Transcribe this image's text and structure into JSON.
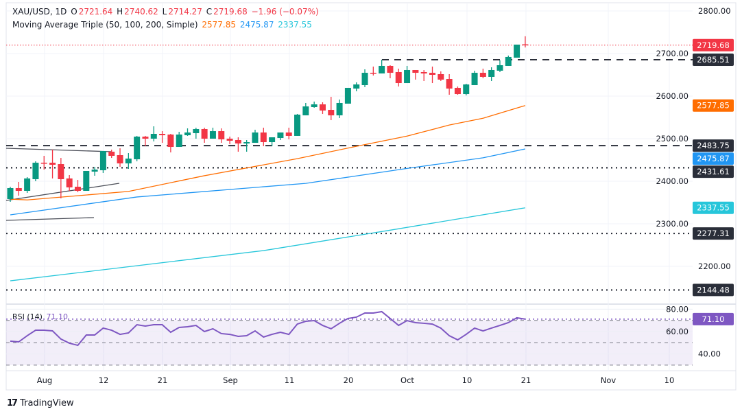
{
  "header": {
    "symbol": "XAU/USD, 1D",
    "open_label": "O",
    "open": "2721.64",
    "high_label": "H",
    "high": "2740.62",
    "low_label": "L",
    "low": "2714.27",
    "close_label": "C",
    "close": "2719.68",
    "change": "−1.96 (−0.07%)"
  },
  "indicator": {
    "name": "Moving Average Triple (50, 100, 200, Simple)",
    "ma50": "2577.85",
    "ma100": "2475.87",
    "ma200": "2337.55"
  },
  "rsi": {
    "label": "RSI (14)",
    "value": "71.10"
  },
  "branding": {
    "name": "TradingView"
  },
  "colors": {
    "up": "#089981",
    "down": "#f23645",
    "ma50": "#ff6d00",
    "ma100": "#2196f3",
    "ma200": "#26c6da",
    "rsi": "#7e57c2",
    "level": "#2a2e39"
  },
  "price_axis": {
    "ticks": [
      "2800.00",
      "2700.00",
      "2600.00",
      "2500.00",
      "2400.00",
      "2300.00",
      "2200.00"
    ],
    "labels": [
      {
        "text": "2719.68",
        "bg": "#f23645"
      },
      {
        "text": "2685.51",
        "bg": "#2a2e39"
      },
      {
        "text": "2577.85",
        "bg": "#ff6d00"
      },
      {
        "text": "2483.75",
        "bg": "#2a2e39"
      },
      {
        "text": "2475.87",
        "bg": "#2196f3"
      },
      {
        "text": "2431.61",
        "bg": "#2a2e39"
      },
      {
        "text": "2337.55",
        "bg": "#26c6da"
      },
      {
        "text": "2277.31",
        "bg": "#2a2e39"
      },
      {
        "text": "2144.48",
        "bg": "#2a2e39"
      }
    ]
  },
  "rsi_axis": {
    "ticks": [
      "80.00",
      "60.00",
      "40.00"
    ],
    "label": {
      "text": "71.10",
      "bg": "#7e57c2"
    }
  },
  "time_axis": {
    "labels": [
      "Aug",
      "12",
      "21",
      "Sep",
      "11",
      "20",
      "Oct",
      "10",
      "21",
      "Nov",
      "10"
    ]
  },
  "chart_data": {
    "type": "candlestick",
    "ylim": [
      2130,
      2820
    ],
    "candles": [
      [
        2358.1,
        2387.1,
        2351.6,
        2383.9
      ],
      [
        2383.9,
        2398.4,
        2366.1,
        2377.4
      ],
      [
        2377.4,
        2409.7,
        2372.6,
        2406.5
      ],
      [
        2404.8,
        2446.8,
        2400.0,
        2443.5
      ],
      [
        2443.5,
        2459.7,
        2427.4,
        2441.9
      ],
      [
        2443.5,
        2474.2,
        2406.5,
        2438.7
      ],
      [
        2440.3,
        2454.8,
        2359.7,
        2404.8
      ],
      [
        2406.5,
        2414.5,
        2377.4,
        2385.5
      ],
      [
        2387.1,
        2403.2,
        2374.2,
        2377.4
      ],
      [
        2377.4,
        2424.2,
        2377.4,
        2424.2
      ],
      [
        2422.6,
        2433.9,
        2412.9,
        2427.4
      ],
      [
        2425.8,
        2471.0,
        2419.4,
        2471.0
      ],
      [
        2469.4,
        2474.2,
        2454.8,
        2459.7
      ],
      [
        2461.3,
        2477.4,
        2433.9,
        2441.9
      ],
      [
        2441.9,
        2466.1,
        2429.0,
        2453.2
      ],
      [
        2451.6,
        2506.5,
        2446.8,
        2504.8
      ],
      [
        2504.8,
        2506.5,
        2482.3,
        2500.0
      ],
      [
        2500.0,
        2529.0,
        2493.5,
        2511.3
      ],
      [
        2511.3,
        2517.7,
        2490.3,
        2508.1
      ],
      [
        2509.7,
        2511.3,
        2467.7,
        2480.6
      ],
      [
        2480.6,
        2516.1,
        2480.6,
        2509.7
      ],
      [
        2508.1,
        2524.2,
        2506.5,
        2514.5
      ],
      [
        2512.9,
        2525.8,
        2500.0,
        2522.6
      ],
      [
        2522.6,
        2525.8,
        2490.3,
        2500.0
      ],
      [
        2500.0,
        2525.8,
        2500.0,
        2517.7
      ],
      [
        2517.7,
        2524.2,
        2490.3,
        2498.4
      ],
      [
        2500.0,
        2504.8,
        2487.1,
        2495.2
      ],
      [
        2496.8,
        2503.2,
        2469.4,
        2488.7
      ],
      [
        2488.7,
        2496.8,
        2469.4,
        2491.9
      ],
      [
        2490.3,
        2521.0,
        2490.3,
        2514.5
      ],
      [
        2514.5,
        2525.8,
        2482.3,
        2491.9
      ],
      [
        2491.9,
        2503.2,
        2482.3,
        2503.2
      ],
      [
        2501.6,
        2514.5,
        2496.8,
        2514.5
      ],
      [
        2514.5,
        2525.8,
        2498.4,
        2506.5
      ],
      [
        2506.5,
        2558.1,
        2506.5,
        2556.5
      ],
      [
        2554.8,
        2583.9,
        2554.8,
        2575.8
      ],
      [
        2574.2,
        2587.1,
        2572.6,
        2580.6
      ],
      [
        2580.6,
        2585.5,
        2558.1,
        2566.1
      ],
      [
        2567.7,
        2598.4,
        2543.5,
        2554.8
      ],
      [
        2554.8,
        2591.9,
        2548.4,
        2583.9
      ],
      [
        2582.3,
        2619.4,
        2582.3,
        2619.4
      ],
      [
        2617.7,
        2632.3,
        2611.3,
        2627.4
      ],
      [
        2625.8,
        2662.9,
        2621.0,
        2654.8
      ],
      [
        2654.8,
        2669.4,
        2648.4,
        2653.2
      ],
      [
        2653.2,
        2685.5,
        2653.2,
        2671.0
      ],
      [
        2671.0,
        2672.6,
        2641.9,
        2654.8
      ],
      [
        2656.5,
        2664.5,
        2622.6,
        2630.6
      ],
      [
        2630.6,
        2671.0,
        2630.6,
        2661.3
      ],
      [
        2661.3,
        2661.3,
        2638.7,
        2654.8
      ],
      [
        2656.5,
        2661.3,
        2635.5,
        2653.2
      ],
      [
        2654.8,
        2669.4,
        2630.6,
        2650.0
      ],
      [
        2651.6,
        2658.1,
        2635.5,
        2638.7
      ],
      [
        2640.3,
        2651.6,
        2603.2,
        2617.7
      ],
      [
        2619.4,
        2622.6,
        2603.2,
        2604.8
      ],
      [
        2604.8,
        2629.0,
        2601.6,
        2627.4
      ],
      [
        2625.8,
        2659.7,
        2625.8,
        2654.8
      ],
      [
        2654.8,
        2664.5,
        2641.9,
        2645.2
      ],
      [
        2645.2,
        2667.7,
        2635.5,
        2661.3
      ],
      [
        2659.7,
        2683.9,
        2656.5,
        2672.6
      ],
      [
        2671.0,
        2695.2,
        2671.0,
        2692.0
      ],
      [
        2690.3,
        2721.0,
        2690.3,
        2721.0
      ],
      [
        2721.64,
        2740.62,
        2714.27,
        2719.68
      ]
    ],
    "ma50": [
      [
        0,
        2358
      ],
      [
        2,
        2356
      ],
      [
        14,
        2376
      ],
      [
        23,
        2413
      ],
      [
        34,
        2453
      ],
      [
        41,
        2482
      ],
      [
        47,
        2506
      ],
      [
        52,
        2532
      ],
      [
        56,
        2548
      ],
      [
        61,
        2577.85
      ]
    ],
    "ma100": [
      [
        0,
        2321
      ],
      [
        15,
        2363
      ],
      [
        35,
        2395
      ],
      [
        47,
        2430
      ],
      [
        56,
        2455
      ],
      [
        61,
        2475.87
      ]
    ],
    "ma200": [
      [
        0,
        2166
      ],
      [
        30,
        2237
      ],
      [
        45,
        2285
      ],
      [
        61,
        2337.55
      ]
    ],
    "hlines": [
      {
        "price": 2719.68,
        "style": "dotted",
        "color": "#f23645"
      },
      {
        "price": 2685.51,
        "style": "dashed",
        "color": "#2a2e39"
      },
      {
        "price": 2483.75,
        "style": "dashed",
        "color": "#2a2e39"
      },
      {
        "price": 2431.61,
        "style": "dotted",
        "color": "#2a2e39"
      },
      {
        "price": 2277.31,
        "style": "dotted",
        "color": "#2a2e39"
      },
      {
        "price": 2144.48,
        "style": "dotted",
        "color": "#2a2e39"
      }
    ],
    "rsi_values": [
      51.4,
      50.8,
      56.3,
      61.2,
      61.2,
      60.6,
      53.3,
      49.6,
      47.7,
      56.9,
      56.9,
      63.1,
      61.2,
      57.5,
      58.8,
      66.1,
      64.9,
      66.1,
      66.1,
      59.4,
      63.7,
      64.3,
      65.5,
      60.0,
      62.5,
      58.2,
      57.5,
      55.7,
      56.3,
      60.6,
      55.1,
      57.5,
      59.4,
      57.5,
      66.7,
      69.2,
      69.8,
      65.5,
      62.5,
      67.4,
      71.7,
      72.9,
      76.6,
      76.6,
      77.8,
      71.7,
      65.5,
      69.8,
      68.0,
      67.4,
      66.7,
      63.1,
      56.3,
      52.6,
      57.5,
      63.1,
      60.6,
      63.1,
      65.5,
      68.0,
      72.3,
      71.1
    ],
    "rsi_levels": [
      70,
      50,
      30
    ],
    "rsi_ylim": [
      20,
      90
    ]
  }
}
